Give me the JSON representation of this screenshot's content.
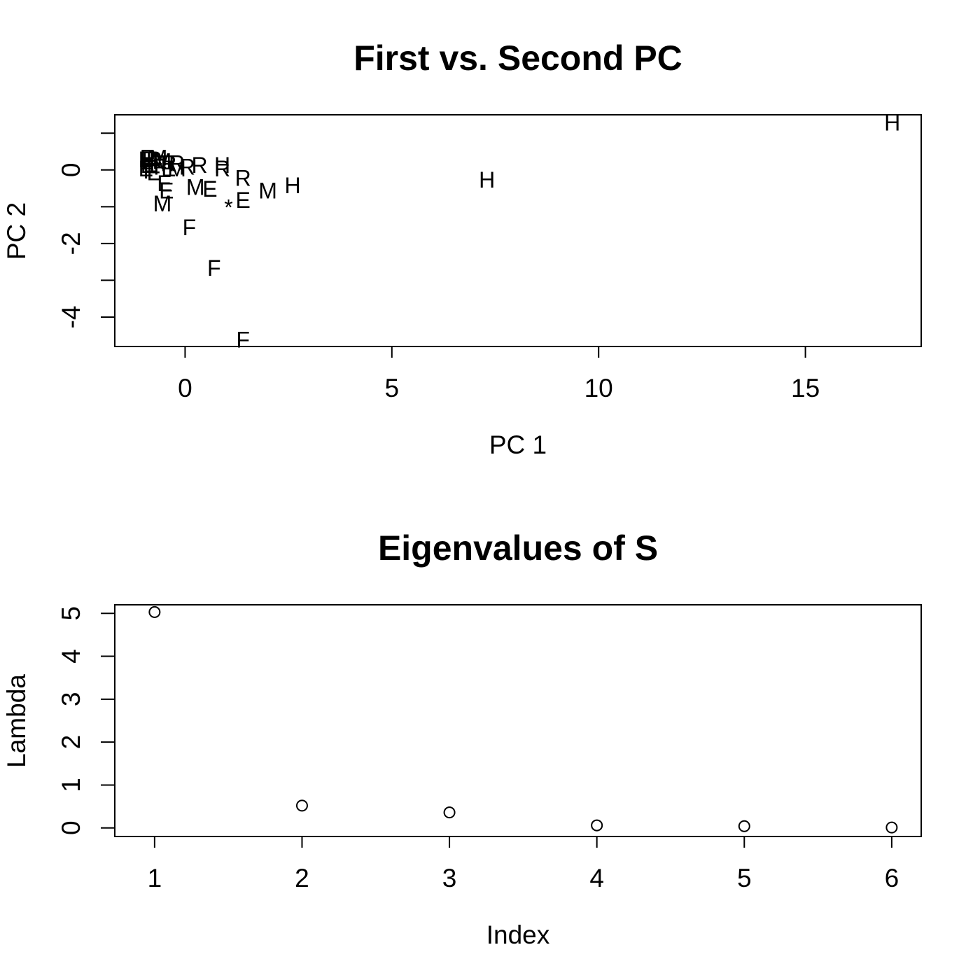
{
  "chart_data": [
    {
      "type": "scatter",
      "title": "First vs. Second PC",
      "xlabel": "PC 1",
      "ylabel": "PC 2",
      "xlim": [
        -1.7,
        17.8
      ],
      "ylim": [
        -4.8,
        1.5
      ],
      "x_ticks": [
        0,
        5,
        10,
        15
      ],
      "x_tick_labels": [
        "0",
        "5",
        "10",
        "15"
      ],
      "y_ticks": [
        -4,
        -3,
        -2,
        -1,
        0,
        1
      ],
      "y_tick_labels": [
        "-4",
        "",
        "-2",
        "",
        "0",
        ""
      ],
      "marker": "text",
      "points": [
        {
          "x": 17.1,
          "y": 1.3,
          "label": "H"
        },
        {
          "x": 7.3,
          "y": -0.25,
          "label": "H"
        },
        {
          "x": 2.6,
          "y": -0.4,
          "label": "H"
        },
        {
          "x": 2.0,
          "y": -0.55,
          "label": "M"
        },
        {
          "x": 1.4,
          "y": -0.8,
          "label": "E"
        },
        {
          "x": 1.4,
          "y": -0.2,
          "label": "R"
        },
        {
          "x": 1.05,
          "y": -1.0,
          "label": "*"
        },
        {
          "x": 0.9,
          "y": 0.05,
          "label": "R"
        },
        {
          "x": 0.9,
          "y": 0.15,
          "label": "H"
        },
        {
          "x": 0.6,
          "y": -0.5,
          "label": "E"
        },
        {
          "x": 0.25,
          "y": -0.45,
          "label": "M"
        },
        {
          "x": 0.7,
          "y": -2.65,
          "label": "F"
        },
        {
          "x": 0.1,
          "y": -1.55,
          "label": "F"
        },
        {
          "x": 1.4,
          "y": -4.6,
          "label": "F"
        },
        {
          "x": -0.55,
          "y": -0.9,
          "label": "M"
        },
        {
          "x": -0.45,
          "y": -0.55,
          "label": "E"
        },
        {
          "x": -0.5,
          "y": -0.35,
          "label": "E"
        },
        {
          "x": 0.35,
          "y": 0.15,
          "label": "R"
        },
        {
          "x": 0.05,
          "y": 0.1,
          "label": "R"
        },
        {
          "x": -0.2,
          "y": 0.05,
          "label": "M"
        },
        {
          "x": -0.4,
          "y": 0.05,
          "label": "E"
        },
        {
          "x": -0.6,
          "y": 0.1,
          "label": "F"
        },
        {
          "x": -0.9,
          "y": 0.15,
          "label": "E"
        },
        {
          "x": -0.85,
          "y": 0.25,
          "label": "H"
        },
        {
          "x": -0.75,
          "y": 0.3,
          "label": "R"
        },
        {
          "x": -0.95,
          "y": 0.3,
          "label": "E"
        },
        {
          "x": -0.7,
          "y": 0.2,
          "label": "F"
        },
        {
          "x": -0.55,
          "y": 0.25,
          "label": "M"
        },
        {
          "x": -0.4,
          "y": 0.2,
          "label": "R"
        },
        {
          "x": -0.2,
          "y": 0.2,
          "label": "R"
        },
        {
          "x": -0.85,
          "y": 0.0,
          "label": "F"
        },
        {
          "x": -0.95,
          "y": 0.05,
          "label": "E"
        },
        {
          "x": -0.75,
          "y": -0.05,
          "label": "E"
        },
        {
          "x": -0.9,
          "y": 0.35,
          "label": "R"
        },
        {
          "x": -0.65,
          "y": 0.35,
          "label": "M"
        }
      ]
    },
    {
      "type": "scatter",
      "title": "Eigenvalues of S",
      "xlabel": "Index",
      "ylabel": "Lambda",
      "xlim": [
        0.73,
        6.2
      ],
      "ylim": [
        -0.2,
        5.2
      ],
      "x_ticks": [
        1,
        2,
        3,
        4,
        5,
        6
      ],
      "x_tick_labels": [
        "1",
        "2",
        "3",
        "4",
        "5",
        "6"
      ],
      "y_ticks": [
        0,
        1,
        2,
        3,
        4,
        5
      ],
      "y_tick_labels": [
        "0",
        "1",
        "2",
        "3",
        "4",
        "5"
      ],
      "marker": "open-circle",
      "x": [
        1,
        2,
        3,
        4,
        5,
        6
      ],
      "y": [
        5.03,
        0.52,
        0.36,
        0.06,
        0.04,
        0.01
      ]
    }
  ]
}
